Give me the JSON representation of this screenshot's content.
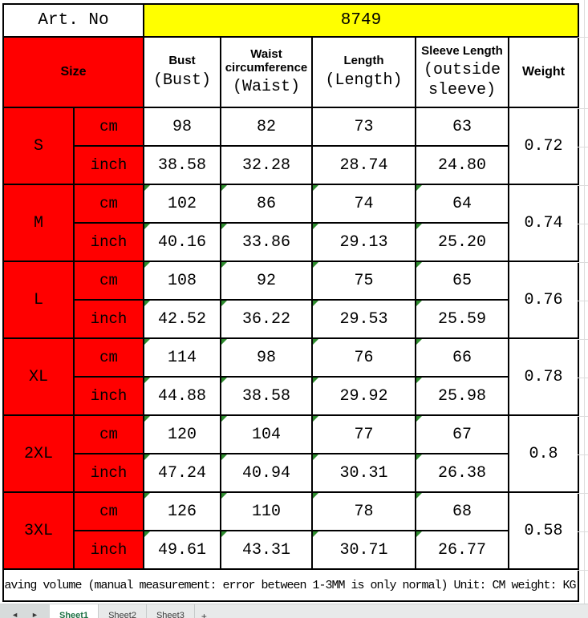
{
  "art_no": {
    "label": "Art. No",
    "value": "8749"
  },
  "header": {
    "size_label": "Size",
    "columns": [
      {
        "title": "Bust",
        "subtitle": "(Bust)"
      },
      {
        "title": "Waist circumference",
        "subtitle": "(Waist)"
      },
      {
        "title": "Length",
        "subtitle": "(Length)"
      },
      {
        "title": "Sleeve Length",
        "subtitle": "(outside sleeve)"
      },
      {
        "title": "Weight",
        "subtitle": ""
      }
    ]
  },
  "units": [
    "cm",
    "inch"
  ],
  "measure_keys": [
    "bust",
    "waist",
    "length",
    "sleeve"
  ],
  "rows": [
    {
      "size": "S",
      "cm": [
        "98",
        "82",
        "73",
        "63"
      ],
      "inch": [
        "38.58",
        "32.28",
        "28.74",
        "24.80"
      ],
      "weight": "0.72",
      "flagged": false
    },
    {
      "size": "M",
      "cm": [
        "102",
        "86",
        "74",
        "64"
      ],
      "inch": [
        "40.16",
        "33.86",
        "29.13",
        "25.20"
      ],
      "weight": "0.74",
      "flagged": true
    },
    {
      "size": "L",
      "cm": [
        "108",
        "92",
        "75",
        "65"
      ],
      "inch": [
        "42.52",
        "36.22",
        "29.53",
        "25.59"
      ],
      "weight": "0.76",
      "flagged": true
    },
    {
      "size": "XL",
      "cm": [
        "114",
        "98",
        "76",
        "66"
      ],
      "inch": [
        "44.88",
        "38.58",
        "29.92",
        "25.98"
      ],
      "weight": "0.78",
      "flagged": true
    },
    {
      "size": "2XL",
      "cm": [
        "120",
        "104",
        "77",
        "67"
      ],
      "inch": [
        "47.24",
        "40.94",
        "30.31",
        "26.38"
      ],
      "weight": "0.8",
      "flagged": true
    },
    {
      "size": "3XL",
      "cm": [
        "126",
        "110",
        "78",
        "68"
      ],
      "inch": [
        "49.61",
        "43.31",
        "30.71",
        "26.77"
      ],
      "weight": "0.58",
      "flagged": true
    }
  ],
  "note": "aving volume (manual measurement: error between 1-3MM is only normal) Unit: CM weight: KG",
  "sheet_tabs": {
    "nav_prev": "◄",
    "nav_next": "►",
    "active": "Sheet1",
    "others": [
      "Sheet2",
      "Sheet3"
    ],
    "add_label": "+"
  },
  "colors": {
    "highlight_red": "#ff0000",
    "highlight_yellow": "#ffff00",
    "flag_green": "#2e8b2e",
    "active_tab_green": "#1e7145"
  }
}
